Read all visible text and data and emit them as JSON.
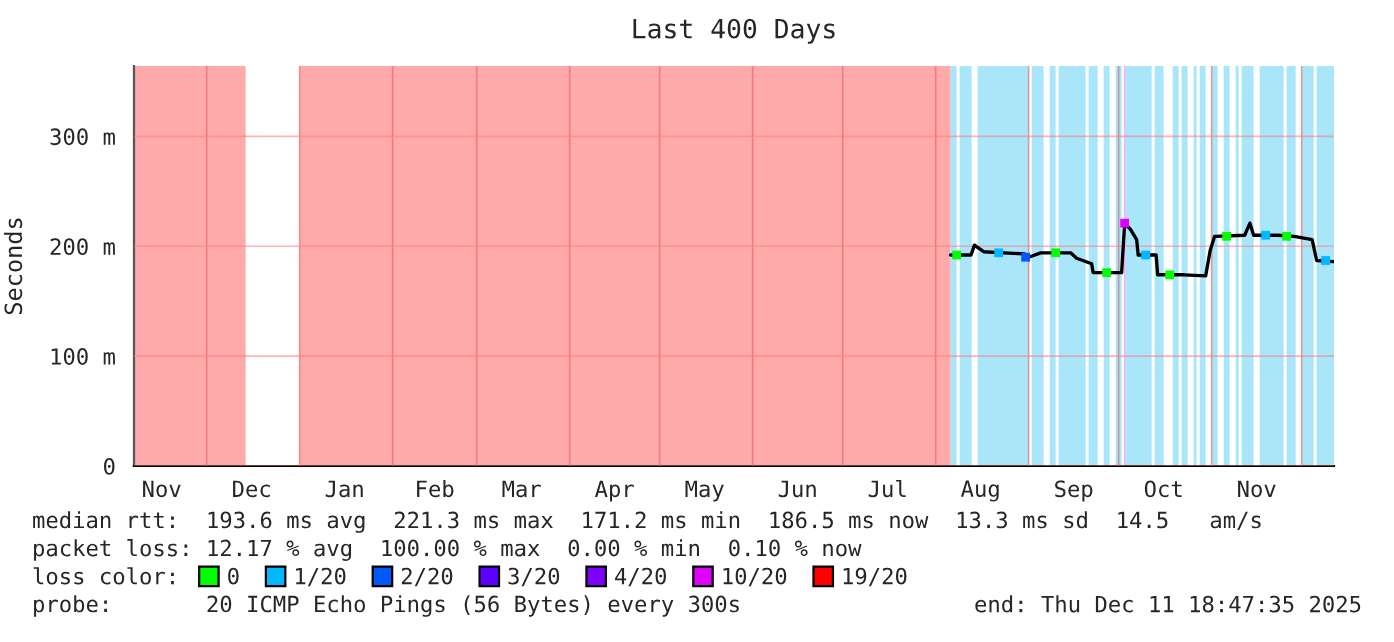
{
  "chart_data": {
    "type": "line",
    "title": "Last 400 Days",
    "ylabel": "Seconds",
    "xlim": [
      "2024-11-06T18:47",
      "2025-12-11T18:47"
    ],
    "xticks": [
      {
        "value": "2024-11-16",
        "label": "Nov"
      },
      {
        "value": "2024-12-16",
        "label": "Dec"
      },
      {
        "value": "2025-01-16",
        "label": "Jan"
      },
      {
        "value": "2025-02-15",
        "label": "Feb"
      },
      {
        "value": "2025-03-16",
        "label": "Mar"
      },
      {
        "value": "2025-04-16",
        "label": "Apr"
      },
      {
        "value": "2025-05-16",
        "label": "May"
      },
      {
        "value": "2025-06-16",
        "label": "Jun"
      },
      {
        "value": "2025-07-16",
        "label": "Jul"
      },
      {
        "value": "2025-08-16",
        "label": "Aug"
      },
      {
        "value": "2025-09-16",
        "label": "Sep"
      },
      {
        "value": "2025-10-16",
        "label": "Oct"
      },
      {
        "value": "2025-11-16",
        "label": "Nov"
      },
      {
        "value": "2024-12-01",
        "label": null
      },
      {
        "value": "2025-01-01",
        "label": null
      },
      {
        "value": "2025-02-01",
        "label": null
      },
      {
        "value": "2025-03-01",
        "label": null
      },
      {
        "value": "2025-04-01",
        "label": null
      },
      {
        "value": "2025-05-01",
        "label": null
      },
      {
        "value": "2025-06-01",
        "label": null
      },
      {
        "value": "2025-07-01",
        "label": null
      },
      {
        "value": "2025-08-01",
        "label": null
      },
      {
        "value": "2025-09-01",
        "label": null
      },
      {
        "value": "2025-10-01",
        "label": null
      },
      {
        "value": "2025-11-01",
        "label": null
      },
      {
        "value": "2025-12-01",
        "label": null
      }
    ],
    "ylim": [
      0,
      364
    ],
    "yticks": [
      {
        "value": 0,
        "label": "0"
      },
      {
        "value": 100,
        "label": "100 m"
      },
      {
        "value": 200,
        "label": "200 m"
      },
      {
        "value": 300,
        "label": "300 m"
      }
    ],
    "grid": true,
    "legend": "bottom",
    "legend_title": "loss color:",
    "series": [
      {
        "color": "#000000",
        "x": [
          "2025-08-06",
          "2025-08-12T19:00",
          "2025-08-13T22:00",
          "2025-08-17",
          "2025-08-30T14:00",
          "2025-09-01",
          "2025-09-05",
          "2025-09-15",
          "2025-09-17",
          "2025-09-22",
          "2025-09-22T12:00",
          "2025-10-02",
          "2025-10-03",
          "2025-10-05",
          "2025-10-07",
          "2025-10-07T12:00",
          "2025-10-13T12:00",
          "2025-10-14",
          "2025-10-22T18:00",
          "2025-10-30",
          "2025-10-31T12:00",
          "2025-11-02",
          "2025-11-12",
          "2025-11-13T18:00",
          "2025-11-15",
          "2025-11-20T18:00",
          "2025-11-23",
          "2025-11-28T12:00",
          "2025-12-04T12:00",
          "2025-12-06",
          "2025-12-11T12:00"
        ],
        "values": [
          192,
          192,
          201,
          195,
          193,
          190,
          194,
          194,
          189,
          184,
          176,
          176,
          221,
          215,
          206,
          192,
          192,
          174,
          174,
          173,
          196,
          209,
          210,
          221,
          210,
          210,
          210,
          209,
          206,
          187,
          186
        ]
      },
      {
        "type": "scatter",
        "name": "0",
        "color": "#00ff00",
        "x": [
          "2025-08-08",
          "2025-09-10",
          "2025-09-27",
          "2025-10-18",
          "2025-11-06",
          "2025-11-26"
        ],
        "values": [
          192,
          194,
          176,
          174,
          209,
          209
        ]
      },
      {
        "type": "scatter",
        "name": "1/20",
        "color": "#00b8ff",
        "x": [
          "2025-08-22",
          "2025-10-10",
          "2025-11-19",
          "2025-12-09"
        ],
        "values": [
          194,
          192,
          210,
          187
        ]
      },
      {
        "type": "scatter",
        "name": "2/20",
        "color": "#0059ff",
        "x": [
          "2025-08-31"
        ],
        "values": [
          190
        ]
      },
      {
        "type": "scatter",
        "name": "3/20",
        "color": "#5e00ff"
      },
      {
        "type": "scatter",
        "name": "4/20",
        "color": "#7e00ff"
      },
      {
        "type": "scatter",
        "name": "10/20",
        "color": "#dd00ff",
        "x": [
          "2025-10-03"
        ],
        "values": [
          221
        ]
      },
      {
        "type": "scatter",
        "name": "19/20",
        "color": "#ff0000"
      }
    ],
    "bands": [
      {
        "axis": "x",
        "from": "2024-11-06T18:47",
        "to": "2024-12-14",
        "color": "#ffaaaa"
      },
      {
        "axis": "x",
        "from": "2025-01-01",
        "to": "2025-08-06",
        "color": "#ffaaaa"
      },
      {
        "axis": "x",
        "from": "2025-08-06",
        "to": "2025-08-08",
        "color": "#aae6fa"
      },
      {
        "axis": "x",
        "from": "2025-08-09",
        "to": "2025-08-13",
        "color": "#aae6fa"
      },
      {
        "axis": "x",
        "from": "2025-08-15",
        "to": "2025-09-01",
        "color": "#aae6fa"
      },
      {
        "axis": "x",
        "from": "2025-09-02",
        "to": "2025-09-06",
        "color": "#aae6fa"
      },
      {
        "axis": "x",
        "from": "2025-09-08",
        "to": "2025-09-10",
        "color": "#aae6fa"
      },
      {
        "axis": "x",
        "from": "2025-09-11",
        "to": "2025-09-20",
        "color": "#aae6fa"
      },
      {
        "axis": "x",
        "from": "2025-09-21",
        "to": "2025-09-24",
        "color": "#aae6fa"
      },
      {
        "axis": "x",
        "from": "2025-09-26",
        "to": "2025-09-28",
        "color": "#aae6fa"
      },
      {
        "axis": "x",
        "from": "2025-09-30",
        "to": "2025-10-02",
        "color": "#aae6fa"
      },
      {
        "axis": "x",
        "from": "2025-10-02T20:00",
        "to": "2025-10-03T08:00",
        "color": "#ff99ff"
      },
      {
        "axis": "x",
        "from": "2025-10-03T08:00",
        "to": "2025-10-12",
        "color": "#aae6fa"
      },
      {
        "axis": "x",
        "from": "2025-10-13",
        "to": "2025-10-16",
        "color": "#aae6fa"
      },
      {
        "axis": "x",
        "from": "2025-10-19",
        "to": "2025-10-21",
        "color": "#aae6fa"
      },
      {
        "axis": "x",
        "from": "2025-10-22",
        "to": "2025-10-24",
        "color": "#aae6fa"
      },
      {
        "axis": "x",
        "from": "2025-10-26",
        "to": "2025-10-27",
        "color": "#aae6fa"
      },
      {
        "axis": "x",
        "from": "2025-10-28",
        "to": "2025-10-30",
        "color": "#aae6fa"
      },
      {
        "axis": "x",
        "from": "2025-11-01",
        "to": "2025-11-03",
        "color": "#aae6fa"
      },
      {
        "axis": "x",
        "from": "2025-11-05",
        "to": "2025-11-07",
        "color": "#aae6fa"
      },
      {
        "axis": "x",
        "from": "2025-11-09",
        "to": "2025-11-10",
        "color": "#aae6fa"
      },
      {
        "axis": "x",
        "from": "2025-11-11",
        "to": "2025-11-15",
        "color": "#aae6fa"
      },
      {
        "axis": "x",
        "from": "2025-11-17",
        "to": "2025-11-25",
        "color": "#aae6fa"
      },
      {
        "axis": "x",
        "from": "2025-11-26",
        "to": "2025-11-29",
        "color": "#aae6fa"
      },
      {
        "axis": "x",
        "from": "2025-12-01",
        "to": "2025-12-05",
        "color": "#aae6fa"
      },
      {
        "axis": "x",
        "from": "2025-12-06",
        "to": "2025-12-11T18:47",
        "color": "#aae6fa"
      }
    ],
    "annotations": [
      "median rtt:  193.6 ms avg  221.3 ms max  171.2 ms min  186.5 ms now  13.3 ms sd  14.5   am/s",
      "packet loss: 12.17 % avg  100.00 % max  0.00 % min  0.10 % now",
      "probe:       20 ICMP Echo Pings (56 Bytes) every 300s",
      "end: Thu Dec 11 18:47:35 2025"
    ]
  }
}
